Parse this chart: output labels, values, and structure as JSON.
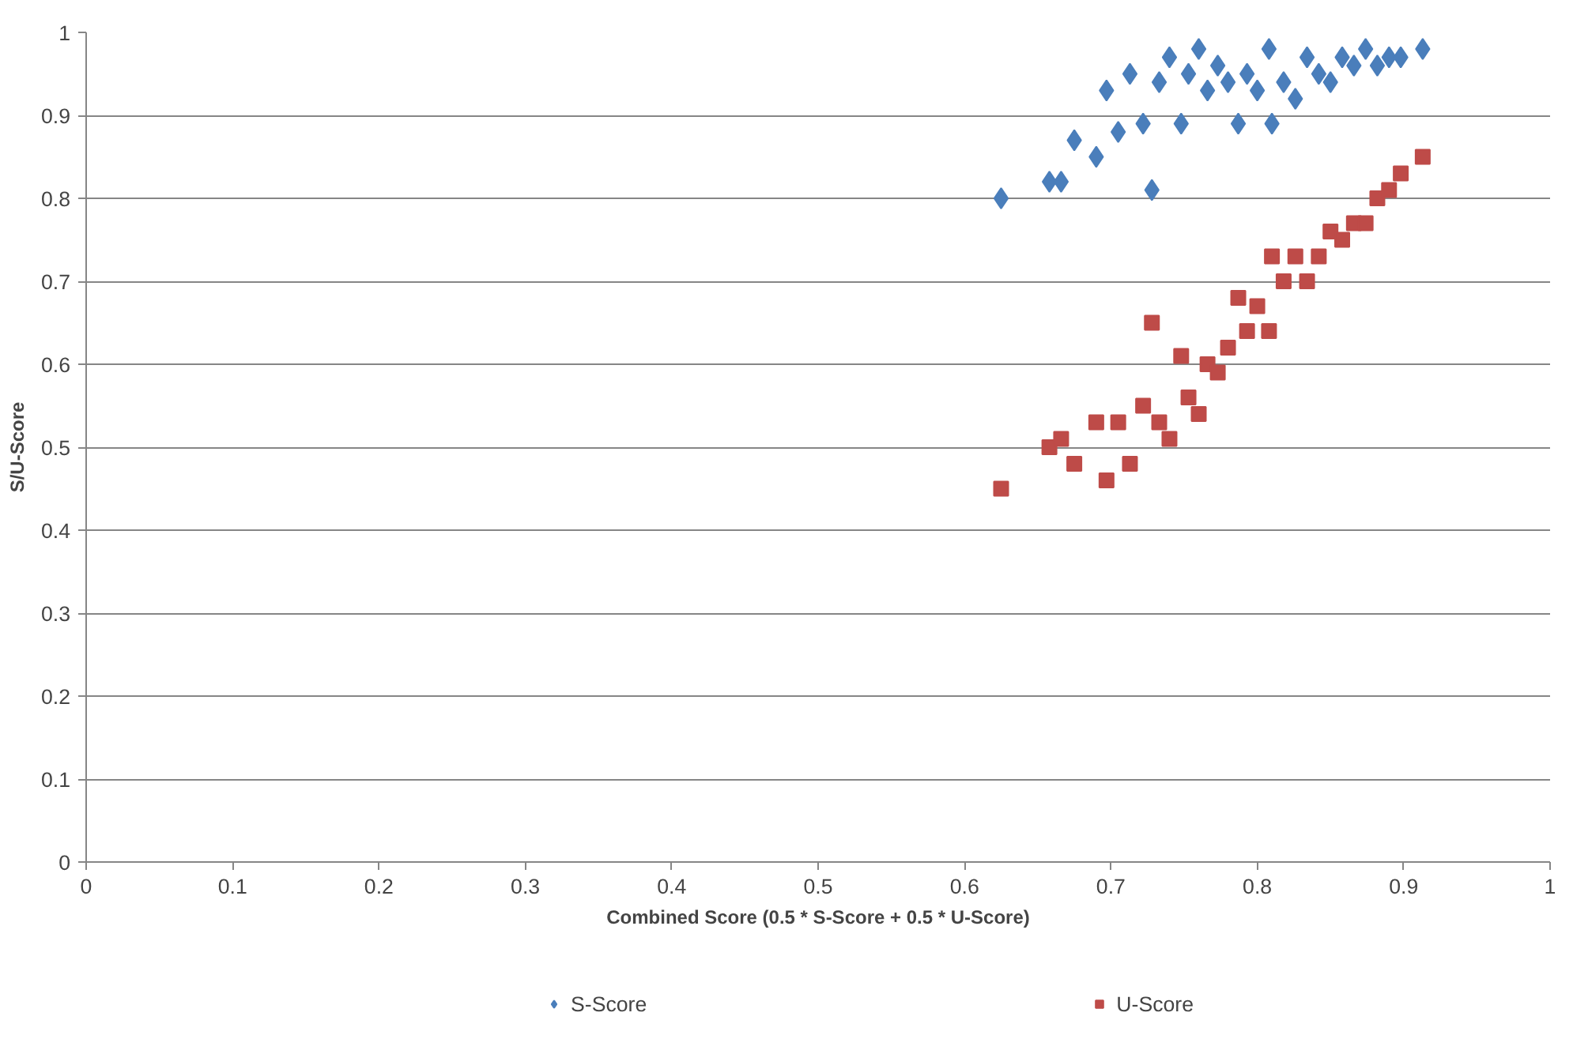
{
  "chart_data": {
    "type": "scatter",
    "xlabel": "Combined Score (0.5 * S-Score + 0.5 * U-Score)",
    "ylabel": "S/U-Score",
    "x": [
      0.625,
      0.658,
      0.666,
      0.675,
      0.69,
      0.697,
      0.705,
      0.713,
      0.722,
      0.728,
      0.733,
      0.74,
      0.748,
      0.753,
      0.76,
      0.766,
      0.773,
      0.78,
      0.787,
      0.793,
      0.8,
      0.808,
      0.81,
      0.818,
      0.826,
      0.834,
      0.842,
      0.85,
      0.858,
      0.866,
      0.874,
      0.882,
      0.89,
      0.898,
      0.913
    ],
    "series": [
      {
        "name": "S-Score",
        "color": "#4a7ebb",
        "marker": "diamond",
        "values": [
          0.8,
          0.82,
          0.82,
          0.87,
          0.85,
          0.93,
          0.88,
          0.95,
          0.89,
          0.81,
          0.94,
          0.97,
          0.89,
          0.95,
          0.98,
          0.93,
          0.96,
          0.94,
          0.89,
          0.95,
          0.93,
          0.98,
          0.89,
          0.94,
          0.92,
          0.97,
          0.95,
          0.94,
          0.97,
          0.96,
          0.98,
          0.96,
          0.97,
          0.97,
          0.98
        ]
      },
      {
        "name": "U-Score",
        "color": "#be4b48",
        "marker": "square",
        "values": [
          0.45,
          0.5,
          0.51,
          0.48,
          0.53,
          0.46,
          0.53,
          0.48,
          0.55,
          0.65,
          0.53,
          0.51,
          0.61,
          0.56,
          0.54,
          0.6,
          0.59,
          0.62,
          0.68,
          0.64,
          0.67,
          0.64,
          0.73,
          0.7,
          0.73,
          0.7,
          0.73,
          0.76,
          0.75,
          0.77,
          0.77,
          0.8,
          0.81,
          0.83,
          0.85
        ]
      }
    ],
    "xlim": [
      0,
      1
    ],
    "ylim": [
      0,
      1
    ],
    "xticks": [
      0,
      0.1,
      0.2,
      0.3,
      0.4,
      0.5,
      0.6,
      0.7,
      0.8,
      0.9,
      1
    ],
    "yticks": [
      0,
      0.1,
      0.2,
      0.3,
      0.4,
      0.5,
      0.6,
      0.7,
      0.8,
      0.9,
      1
    ],
    "grid": "y",
    "legend": "bottom"
  }
}
